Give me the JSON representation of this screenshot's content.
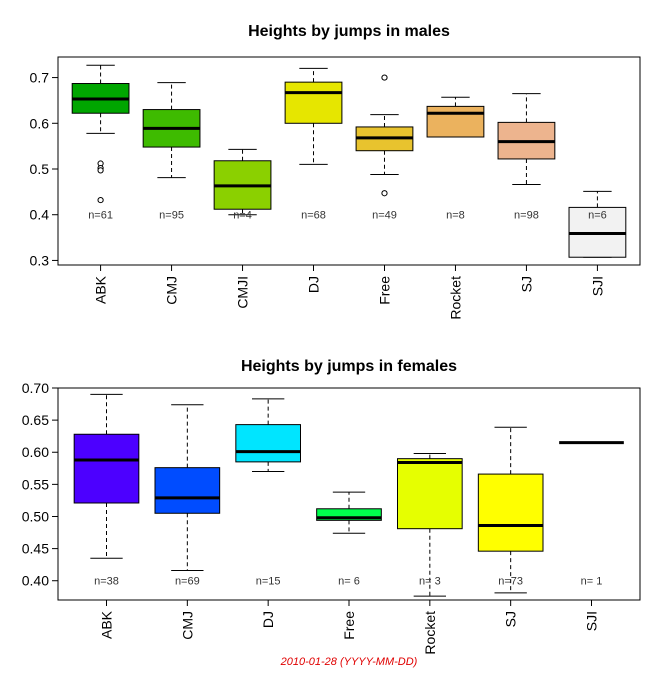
{
  "chart_data": [
    {
      "type": "box",
      "title": "Heights by jumps in males",
      "xlabel": "",
      "ylabel": "",
      "ylim": [
        0.29,
        0.745
      ],
      "yticks": [
        "0.3",
        "0.4",
        "0.5",
        "0.6",
        "0.7"
      ],
      "yticks_values": [
        0.3,
        0.4,
        0.5,
        0.6,
        0.7
      ],
      "grid": false,
      "legend": "none",
      "count_label_y": 0.4,
      "categories": [
        "ABK",
        "CMJ",
        "CMJI",
        "DJ",
        "Free",
        "Rocket",
        "SJ",
        "SJI"
      ],
      "counts": [
        "n=61",
        "n=95",
        "n=4",
        "n=68",
        "n=49",
        "n=8",
        "n=98",
        "n=6"
      ],
      "colors": [
        "#00A600",
        "#3EBB00",
        "#8BD000",
        "#E6E600",
        "#E8C32E",
        "#EBB25E",
        "#EDB48E",
        "#F2F2F2"
      ],
      "boxes": [
        {
          "min": 0.578,
          "q1": 0.622,
          "median": 0.653,
          "q3": 0.687,
          "max": 0.727,
          "outliers": [
            0.512,
            0.502,
            0.497,
            0.432
          ]
        },
        {
          "min": 0.481,
          "q1": 0.548,
          "median": 0.589,
          "q3": 0.63,
          "max": 0.689,
          "outliers": []
        },
        {
          "min": 0.4,
          "q1": 0.412,
          "median": 0.463,
          "q3": 0.518,
          "max": 0.543,
          "outliers": []
        },
        {
          "min": 0.51,
          "q1": 0.6,
          "median": 0.667,
          "q3": 0.69,
          "max": 0.72,
          "outliers": []
        },
        {
          "min": 0.488,
          "q1": 0.54,
          "median": 0.568,
          "q3": 0.592,
          "max": 0.619,
          "outliers": [
            0.7,
            0.447
          ]
        },
        {
          "min": 0.57,
          "q1": 0.57,
          "median": 0.622,
          "q3": 0.637,
          "max": 0.657,
          "outliers": []
        },
        {
          "min": 0.466,
          "q1": 0.522,
          "median": 0.56,
          "q3": 0.602,
          "max": 0.665,
          "outliers": []
        },
        {
          "min": 0.307,
          "q1": 0.307,
          "median": 0.359,
          "q3": 0.416,
          "max": 0.451,
          "outliers": []
        }
      ]
    },
    {
      "type": "box",
      "title": "Heights by jumps in females",
      "xlabel": "",
      "ylabel": "",
      "ylim": [
        0.37,
        0.7
      ],
      "yticks": [
        "0.40",
        "0.45",
        "0.50",
        "0.55",
        "0.60",
        "0.65",
        "0.70"
      ],
      "yticks_values": [
        0.4,
        0.45,
        0.5,
        0.55,
        0.6,
        0.65,
        0.7
      ],
      "grid": false,
      "legend": "none",
      "count_label_y": 0.4,
      "categories": [
        "ABK",
        "CMJ",
        "DJ",
        "Free",
        "Rocket",
        "SJ",
        "SJI"
      ],
      "counts": [
        "n=38",
        "n=69",
        "n=15",
        "n= 6",
        "n= 3",
        "n=73",
        "n= 1"
      ],
      "colors": [
        "#4C00FF",
        "#004CFF",
        "#00E5FF",
        "#00FF4D",
        "#E6FF00",
        "#FFFF00",
        "#FFE0B3"
      ],
      "boxes": [
        {
          "min": 0.435,
          "q1": 0.521,
          "median": 0.588,
          "q3": 0.628,
          "max": 0.69,
          "outliers": []
        },
        {
          "min": 0.416,
          "q1": 0.505,
          "median": 0.529,
          "q3": 0.576,
          "max": 0.674,
          "outliers": []
        },
        {
          "min": 0.57,
          "q1": 0.585,
          "median": 0.601,
          "q3": 0.643,
          "max": 0.683,
          "outliers": []
        },
        {
          "min": 0.474,
          "q1": 0.494,
          "median": 0.498,
          "q3": 0.512,
          "max": 0.538,
          "outliers": []
        },
        {
          "min": 0.376,
          "q1": 0.481,
          "median": 0.584,
          "q3": 0.59,
          "max": 0.598,
          "outliers": []
        },
        {
          "min": 0.381,
          "q1": 0.446,
          "median": 0.486,
          "q3": 0.566,
          "max": 0.639,
          "outliers": []
        },
        {
          "min": 0.615,
          "q1": 0.615,
          "median": 0.615,
          "q3": 0.615,
          "max": 0.615,
          "outliers": []
        }
      ]
    }
  ],
  "footer": {
    "text": "2010-01-28 (YYYY-MM-DD)",
    "color": "#E00000"
  }
}
